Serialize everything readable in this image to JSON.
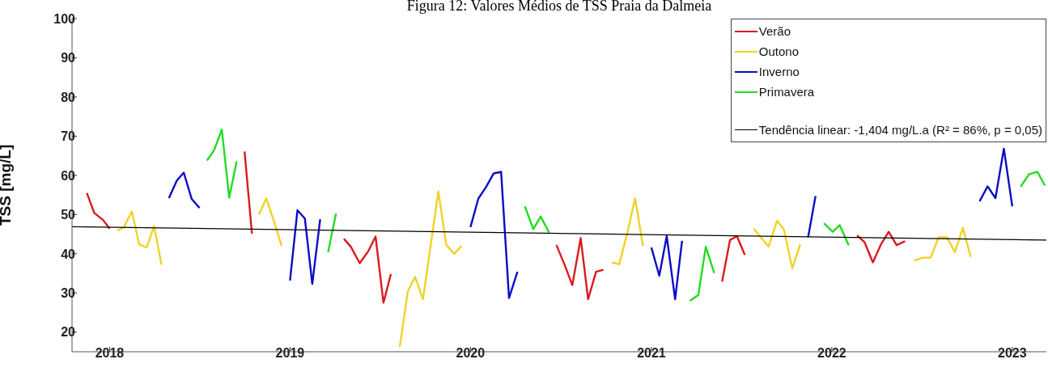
{
  "chart_data": {
    "type": "line",
    "title": "Figura 12: Valores Médios de TSS Praia da Dalmeia",
    "ylabel": "TSS [mg/L]",
    "xlim": [
      "2017-10-17",
      "2023-03-11"
    ],
    "xticks": [
      "2018",
      "2019",
      "2020",
      "2021",
      "2022",
      "2023"
    ],
    "ylim": [
      15,
      100
    ],
    "yticks": [
      20,
      30,
      40,
      50,
      60,
      70,
      80,
      90,
      100
    ],
    "legend": "top right",
    "marker": "none",
    "line_style": "solid",
    "series": [
      {
        "name": "Verão",
        "color": "#dc1a1e",
        "x": [
          "2017-11-16",
          "2017-12-01",
          "2017-12-19",
          "2018-01-01",
          null,
          "2018-10-01",
          "2018-10-16",
          null,
          "2019-04-20",
          "2019-05-04",
          "2019-05-22",
          "2019-06-08",
          "2019-06-23",
          "2019-07-09",
          "2019-07-24",
          null,
          "2020-06-23",
          "2020-07-10",
          "2020-07-25",
          "2020-08-11",
          "2020-08-26",
          "2020-09-11",
          "2020-09-26",
          null,
          "2021-05-24",
          "2021-06-09",
          "2021-06-23",
          "2021-07-09",
          null,
          "2022-02-21",
          "2022-03-08",
          "2022-03-25",
          "2022-04-10",
          "2022-04-26",
          "2022-05-12",
          "2022-05-29"
        ],
        "values": [
          55.5,
          50.4,
          48.6,
          46.4,
          null,
          66.1,
          45.1,
          null,
          43.8,
          41.8,
          37.6,
          40.6,
          44.4,
          27.5,
          34.8,
          null,
          42.2,
          37.0,
          32.0,
          44.0,
          28.4,
          35.4,
          35.9,
          null,
          32.9,
          43.5,
          44.5,
          39.7,
          null,
          44.7,
          43.0,
          37.8,
          42.3,
          45.6,
          42.2,
          43.2
        ]
      },
      {
        "name": "Outono",
        "color": "#f0d228",
        "x": [
          "2018-01-17",
          "2018-01-30",
          "2018-02-15",
          "2018-03-02",
          "2018-03-17",
          "2018-04-01",
          "2018-04-16",
          null,
          "2018-10-30",
          "2018-11-14",
          "2018-11-29",
          "2018-12-15",
          null,
          "2019-08-11",
          "2019-08-27",
          "2019-09-11",
          "2019-09-27",
          "2019-10-28",
          "2019-11-13",
          "2019-11-29",
          "2019-12-14",
          null,
          "2020-10-13",
          "2020-10-28",
          "2020-11-13",
          "2020-11-29",
          "2020-12-15",
          null,
          "2021-07-27",
          "2021-08-26",
          "2021-09-12",
          "2021-09-26",
          "2021-10-13",
          "2021-10-29",
          null,
          "2022-06-17",
          "2022-07-04",
          "2022-07-20",
          "2022-08-05",
          "2022-08-22",
          "2022-09-07",
          "2022-09-23",
          "2022-10-09"
        ],
        "values": [
          45.9,
          46.8,
          50.8,
          42.4,
          41.6,
          47.1,
          37.2,
          null,
          50.0,
          54.1,
          48.5,
          42.0,
          null,
          16.2,
          30.3,
          34.1,
          28.4,
          55.9,
          42.3,
          40.0,
          42.0,
          null,
          37.8,
          37.3,
          45.2,
          54.1,
          42.0,
          null,
          46.4,
          41.8,
          48.4,
          46.2,
          36.3,
          42.4,
          null,
          38.3,
          39.0,
          39.0,
          44.2,
          44.2,
          40.4,
          46.6,
          39.2
        ]
      },
      {
        "name": "Inverno",
        "color": "#0c0cc4",
        "x": [
          "2018-05-01",
          "2018-05-17",
          "2018-05-31",
          "2018-06-16",
          "2018-07-02",
          null,
          "2019-01-01",
          "2019-01-16",
          "2019-01-31",
          "2019-02-15",
          "2019-03-03",
          null,
          "2020-01-01",
          "2020-01-17",
          "2020-02-01",
          "2020-02-17",
          "2020-03-03",
          "2020-03-19",
          "2020-04-05",
          null,
          "2021-01-01",
          "2021-01-17",
          "2021-02-01",
          "2021-02-18",
          "2021-03-04",
          null,
          "2021-11-14",
          "2021-11-29",
          null,
          "2022-10-27",
          "2022-11-12",
          "2022-11-28",
          "2022-12-15",
          "2023-01-01"
        ],
        "values": [
          54.2,
          58.7,
          60.7,
          54.0,
          51.7,
          null,
          33.2,
          51.1,
          49.0,
          32.3,
          48.8,
          null,
          46.8,
          54.1,
          56.9,
          60.5,
          60.9,
          28.7,
          35.4,
          null,
          41.6,
          34.4,
          44.5,
          28.4,
          43.3,
          null,
          44.2,
          54.7,
          null,
          53.4,
          57.2,
          54.2,
          66.8,
          52.1
        ]
      },
      {
        "name": "Primavera",
        "color": "#22dc22",
        "x": [
          "2018-07-17",
          "2018-07-31",
          "2018-08-16",
          "2018-08-31",
          "2018-09-15",
          null,
          "2019-03-19",
          "2019-04-04",
          null,
          "2020-04-20",
          "2020-05-07",
          "2020-05-22",
          "2020-06-08",
          null,
          "2021-03-20",
          "2021-04-06",
          "2021-04-21",
          "2021-05-08",
          null,
          "2021-12-16",
          "2022-01-03",
          "2022-01-17",
          "2022-02-04",
          null,
          "2023-01-18",
          "2023-02-04",
          "2023-02-21",
          "2023-03-08"
        ],
        "values": [
          63.8,
          66.3,
          71.7,
          54.3,
          63.6,
          null,
          40.4,
          50.3,
          null,
          52.1,
          46.3,
          49.5,
          45.4,
          null,
          28.0,
          29.5,
          41.8,
          35.1,
          null,
          47.8,
          45.6,
          47.3,
          42.2,
          null,
          57.1,
          60.3,
          60.9,
          57.4
        ]
      },
      {
        "name": "Tendência linear: -1,404 mg/L.a (R² = 86%, p = 0,05)",
        "color": "#000000",
        "x": [
          "2017-10-17",
          "2023-03-11"
        ],
        "values": [
          46.9,
          43.5
        ]
      }
    ]
  }
}
